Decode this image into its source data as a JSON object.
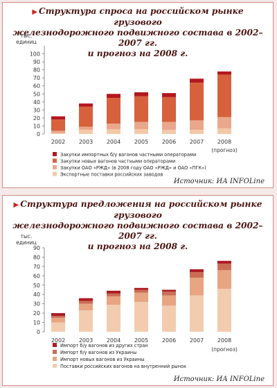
{
  "chart_data": [
    {
      "type": "bar",
      "stacked": true,
      "title_lines": [
        "Структура спроса на российском рынке грузового",
        "железнодорожного подвижного состава в 2002–2007 гг.",
        "и прогноз на 2008 г."
      ],
      "ylabel_lines": [
        "тыс.",
        "единиц"
      ],
      "ylim": [
        0,
        110
      ],
      "yticks": [
        0,
        10,
        20,
        30,
        40,
        50,
        60,
        70,
        80,
        90,
        100
      ],
      "categories": [
        "2002",
        "2003",
        "2004",
        "2005",
        "2006",
        "2007",
        "2008"
      ],
      "category_note": "(прогноз)",
      "series": [
        {
          "name": "Экспортные поставки российских заводов",
          "color": "#f3c9a8",
          "values": [
            1,
            5,
            6,
            6,
            5,
            5,
            7
          ]
        },
        {
          "name": "Закупки ОАО «РЖД» (в 2008 году ОАО «РЖД» и ОАО «ПГК»)",
          "color": "#e9a88c",
          "values": [
            3,
            4,
            7,
            9,
            10,
            12,
            14
          ]
        },
        {
          "name": "Закупки новых вагонов частными операторами",
          "color": "#d6613c",
          "values": [
            14,
            25,
            32,
            32,
            31,
            47,
            53
          ]
        },
        {
          "name": "Закупки импортных б/у вагонов частными операторами",
          "color": "#b5171e",
          "values": [
            4,
            4,
            5,
            5,
            5,
            5,
            4
          ]
        }
      ],
      "legend_position": "bottom-left",
      "grid": false,
      "source_label": "Источник:",
      "source_value": "ИА INFOLine"
    },
    {
      "type": "bar",
      "stacked": true,
      "title_lines": [
        "Структура предложения на российском рынке грузового",
        "железнодорожного подвижного состава в 2002–2007 гг.",
        "и прогноз на 2008 г."
      ],
      "ylabel_lines": [
        "тыс.",
        "единиц"
      ],
      "ylim": [
        0,
        90
      ],
      "yticks": [
        0,
        10,
        20,
        30,
        40,
        50,
        60,
        70,
        80,
        90
      ],
      "categories": [
        "2002",
        "2003",
        "2004",
        "2005",
        "2006",
        "2007",
        "2008"
      ],
      "category_note": "(прогноз)",
      "series": [
        {
          "name": "Поставки российских вагонов на внутренний рынок",
          "color": "#f3ccb0",
          "values": [
            10,
            23,
            29,
            32,
            28,
            39,
            46
          ]
        },
        {
          "name": "Импорт новых вагонов из Украины",
          "color": "#e7a581",
          "values": [
            5,
            7,
            9,
            10,
            11,
            19,
            20
          ]
        },
        {
          "name": "Импорт б/у вагонов из Украины",
          "color": "#c96e55",
          "values": [
            2,
            3,
            3,
            3,
            4,
            6,
            7
          ]
        },
        {
          "name": "Импорт б/у вагонов из других стран",
          "color": "#ad1a22",
          "values": [
            3,
            3,
            3,
            2,
            2,
            3,
            3
          ]
        }
      ],
      "legend_position": "bottom-left",
      "grid": false,
      "source_label": "Источник:",
      "source_value": "ИА INFOLine"
    }
  ]
}
